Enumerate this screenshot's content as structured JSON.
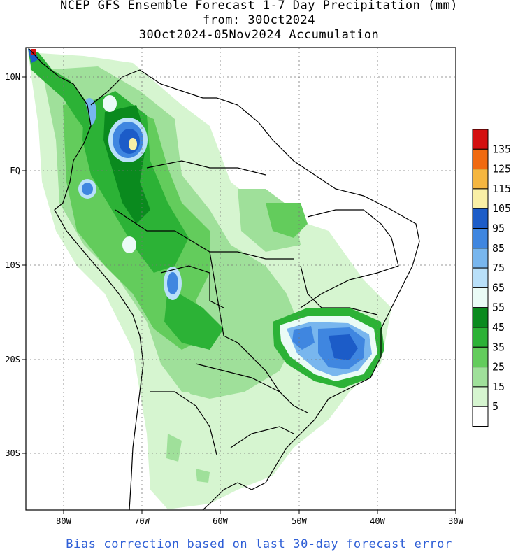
{
  "title": {
    "line1": "NCEP GFS Ensemble Forecast 1-7 Day Precipitation (mm)",
    "line2": "from: 30Oct2024",
    "line3": "30Oct2024-05Nov2024 Accumulation"
  },
  "footer": "Bias correction based on last 30-day forecast error",
  "axes": {
    "lon_labels": [
      "80W",
      "70W",
      "60W",
      "50W",
      "40W",
      "30W"
    ],
    "lat_labels": [
      "10N",
      "EQ",
      "10S",
      "20S",
      "30S"
    ]
  },
  "legend": {
    "labels": [
      "135",
      "125",
      "115",
      "105",
      "95",
      "85",
      "75",
      "65",
      "55",
      "45",
      "35",
      "25",
      "15",
      "5"
    ],
    "colors": [
      "#d41010",
      "#f06a10",
      "#f5b640",
      "#f9efa6",
      "#1c5cc8",
      "#3f86e0",
      "#78b6ee",
      "#b9e0f9",
      "#eafbf6",
      "#0a8a1e",
      "#2cb236",
      "#63cc5c",
      "#9fe09a",
      "#d6f5d0",
      "#ffffff"
    ]
  },
  "map": {
    "colors": {
      "land_outline": "#000000",
      "grid": "#666666",
      "wet_blue": "#3f86e0",
      "deep_blue": "#1c5cc8",
      "green_dark": "#0a8a1e"
    }
  }
}
